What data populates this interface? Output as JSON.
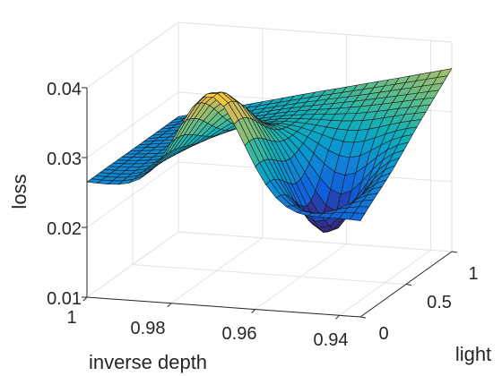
{
  "chart_data": {
    "type": "surface",
    "title": "",
    "xlabel": "inverse depth",
    "ylabel": "light",
    "zlabel": "loss",
    "x_ticks": [
      0.94,
      0.96,
      0.98,
      1
    ],
    "x_tick_labels": [
      "0.94",
      "0.96",
      "0.98",
      "1"
    ],
    "y_ticks": [
      0,
      0.5,
      1
    ],
    "y_tick_labels": [
      "0",
      "0.5",
      "1"
    ],
    "z_ticks": [
      0.01,
      0.02,
      0.03,
      0.04
    ],
    "z_tick_labels": [
      "0.01",
      "0.02",
      "0.03",
      "0.04"
    ],
    "xlim": [
      0.935,
      1.0
    ],
    "ylim": [
      0,
      1
    ],
    "zlim": [
      0.01,
      0.04
    ],
    "grid": true,
    "colormap": "parula",
    "grid_resolution": [
      26,
      21
    ],
    "z_at_corners": {
      "x_1_y_0": 0.0265,
      "x_1_y_1": 0.0265,
      "x_0.935_y_0": 0.0238,
      "x_0.935_y_1": 0.0362
    },
    "z_peak": {
      "x": 0.97,
      "y": 0.02,
      "z": 0.041
    },
    "z_min": {
      "x": 0.95,
      "y": 0.35,
      "z": 0.0205
    }
  }
}
